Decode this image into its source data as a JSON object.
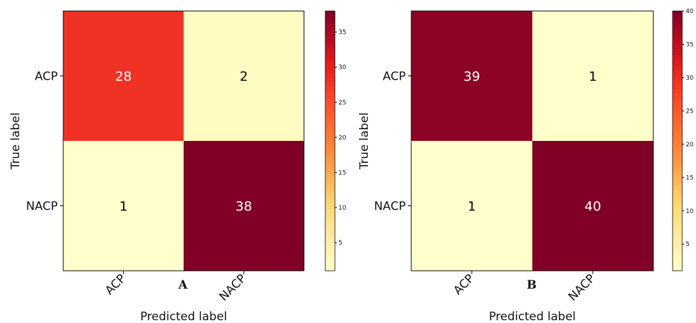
{
  "chart_data": [
    {
      "type": "heatmap",
      "panel_label": "A",
      "xlabel": "Predicted label",
      "ylabel": "True label",
      "x_categories": [
        "ACP",
        "NACP"
      ],
      "y_categories": [
        "ACP",
        "NACP"
      ],
      "values": [
        [
          28,
          2
        ],
        [
          1,
          38
        ]
      ],
      "colorbar": {
        "ticks": [
          "5",
          "10",
          "15",
          "20",
          "25",
          "30",
          "35"
        ],
        "range": [
          1,
          38
        ]
      },
      "colormap": "YlOrRd"
    },
    {
      "type": "heatmap",
      "panel_label": "B",
      "xlabel": "Predicted label",
      "ylabel": "True label",
      "x_categories": [
        "ACP",
        "NACP"
      ],
      "y_categories": [
        "ACP",
        "NACP"
      ],
      "values": [
        [
          39,
          1
        ],
        [
          1,
          40
        ]
      ],
      "colorbar": {
        "ticks": [
          "5",
          "10",
          "15",
          "20",
          "25",
          "30",
          "35",
          "40"
        ],
        "range": [
          1,
          40
        ]
      },
      "colormap": "YlOrRd"
    }
  ],
  "colors": {
    "low": "#fffbc0",
    "mid": "#f78d1e",
    "high": "#ff1e1a",
    "max": "#8e0222"
  }
}
